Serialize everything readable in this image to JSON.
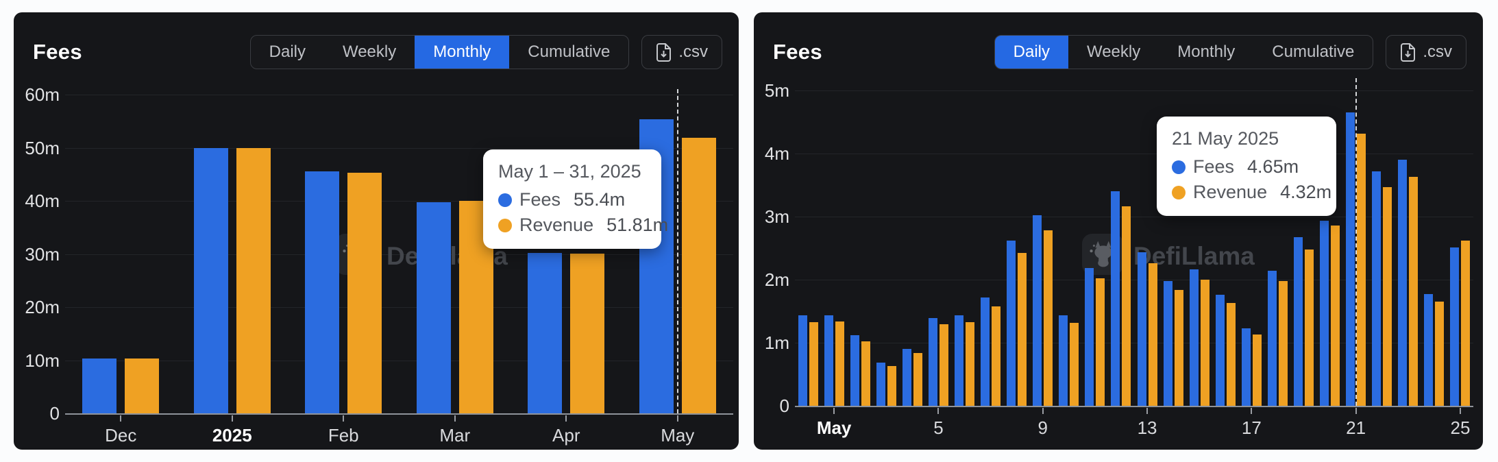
{
  "colors": {
    "fees_blue": "#2b6ce0",
    "revenue_orange": "#efa123",
    "active_tab_blue": "#2569e3",
    "panel_bg": "#151619",
    "tooltip_bg": "#ffffff"
  },
  "panels": [
    {
      "title": "Fees",
      "tabs": [
        "Daily",
        "Weekly",
        "Monthly",
        "Cumulative"
      ],
      "active_tab": "Monthly",
      "csv_label": ".csv",
      "watermark": "DefiLlama",
      "tooltip": {
        "title": "May 1 – 31, 2025",
        "rows": [
          {
            "label": "Fees",
            "value": "55.4m"
          },
          {
            "label": "Revenue",
            "value": "51.81m"
          }
        ]
      },
      "chart_data": {
        "type": "bar",
        "title": "Fees (Monthly)",
        "categories": [
          "Dec",
          "2025",
          "Feb",
          "Mar",
          "Apr",
          "May"
        ],
        "series": [
          {
            "name": "Fees",
            "color": "#2b6ce0",
            "values": [
              10.35,
              50.0,
              45.5,
              39.7,
              30.2,
              55.4
            ]
          },
          {
            "name": "Revenue",
            "color": "#efa123",
            "values": [
              10.3,
              49.9,
              45.3,
              40.0,
              30.05,
              51.81
            ]
          }
        ],
        "xticks": [
          {
            "index": 0,
            "label": "Dec"
          },
          {
            "index": 1,
            "label": "2025",
            "strong": true
          },
          {
            "index": 2,
            "label": "Feb"
          },
          {
            "index": 3,
            "label": "Mar"
          },
          {
            "index": 4,
            "label": "Apr"
          },
          {
            "index": 5,
            "label": "May"
          }
        ],
        "yticks": [
          0,
          10,
          20,
          30,
          40,
          50,
          60
        ],
        "y_suffix": "m",
        "ylim": [
          0,
          60
        ],
        "grid": true,
        "legend_position": "none",
        "highlight_index": 5
      }
    },
    {
      "title": "Fees",
      "tabs": [
        "Daily",
        "Weekly",
        "Monthly",
        "Cumulative"
      ],
      "active_tab": "Daily",
      "csv_label": ".csv",
      "watermark": "DefiLlama",
      "tooltip": {
        "title": "21 May 2025",
        "rows": [
          {
            "label": "Fees",
            "value": "4.65m"
          },
          {
            "label": "Revenue",
            "value": "4.32m"
          }
        ]
      },
      "chart_data": {
        "type": "bar",
        "title": "Fees (Daily)",
        "categories": [
          "30 Apr",
          "1 May",
          "2 May",
          "3 May",
          "4 May",
          "5 May",
          "6 May",
          "7 May",
          "8 May",
          "9 May",
          "10 May",
          "11 May",
          "12 May",
          "13 May",
          "14 May",
          "15 May",
          "16 May",
          "17 May",
          "18 May",
          "19 May",
          "20 May",
          "21 May",
          "22 May",
          "23 May",
          "24 May",
          "25 May"
        ],
        "series": [
          {
            "name": "Fees",
            "color": "#2b6ce0",
            "values": [
              1.43,
              1.44,
              1.12,
              0.68,
              0.9,
              1.39,
              1.44,
              1.72,
              2.62,
              3.02,
              1.44,
              2.18,
              3.4,
              2.44,
              1.98,
              2.16,
              1.76,
              1.23,
              2.14,
              2.67,
              2.93,
              4.65,
              3.72,
              3.9,
              1.77,
              2.51
            ]
          },
          {
            "name": "Revenue",
            "color": "#efa123",
            "values": [
              1.33,
              1.34,
              1.02,
              0.63,
              0.84,
              1.29,
              1.33,
              1.58,
              2.42,
              2.78,
              1.32,
              2.02,
              3.16,
              2.26,
              1.84,
              2.0,
              1.63,
              1.13,
              1.98,
              2.48,
              2.86,
              4.32,
              3.47,
              3.63,
              1.65,
              2.62
            ]
          }
        ],
        "xticks": [
          {
            "index": 1,
            "label": "May",
            "strong": true
          },
          {
            "index": 5,
            "label": "5"
          },
          {
            "index": 9,
            "label": "9"
          },
          {
            "index": 13,
            "label": "13"
          },
          {
            "index": 17,
            "label": "17"
          },
          {
            "index": 21,
            "label": "21"
          },
          {
            "index": 25,
            "label": "25"
          }
        ],
        "yticks": [
          0,
          1,
          2,
          3,
          4,
          5
        ],
        "y_suffix": "m",
        "ylim": [
          0,
          5
        ],
        "grid": true,
        "legend_position": "none",
        "highlight_index": 21
      }
    }
  ]
}
